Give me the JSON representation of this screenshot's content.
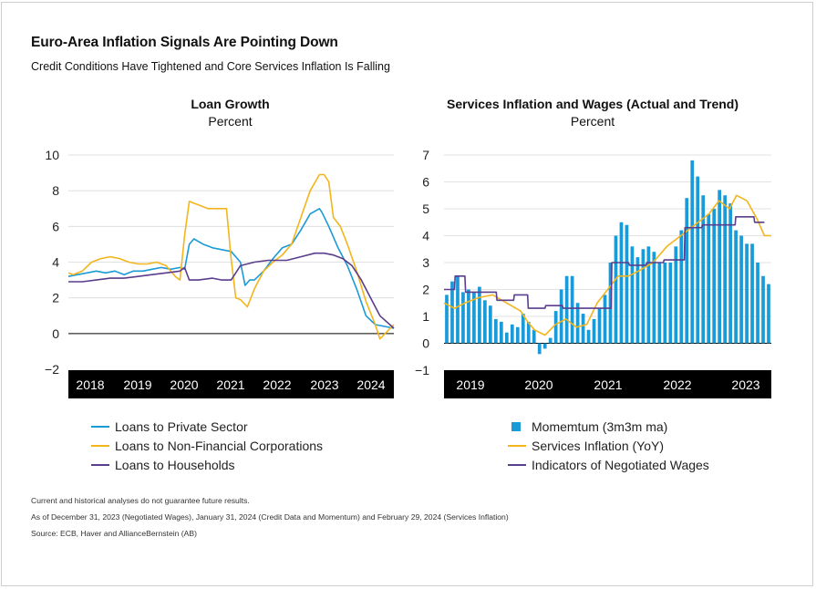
{
  "header": {
    "title": "Euro-Area Inflation Signals Are Pointing Down",
    "subtitle": "Credit Conditions Have Tightened and Core Services Inflation Is Falling"
  },
  "colors": {
    "blue": "#1a9ad6",
    "gold": "#f2b51c",
    "purple": "#5a3d8c",
    "axisband": "#000000"
  },
  "chart_data": [
    {
      "type": "line",
      "title": "Loan Growth",
      "ylabel": "Percent",
      "ylim": [
        -2,
        10
      ],
      "yticks": [
        -2,
        0,
        2,
        4,
        6,
        8,
        10
      ],
      "xticks": [
        "2018",
        "2019",
        "2020",
        "2021",
        "2022",
        "2023",
        "2024"
      ],
      "xlim": [
        2017.5,
        2024.5
      ],
      "grid": true,
      "legend": "bottom",
      "series": [
        {
          "name": "Loans to Private Sector",
          "color": "#1a9ad6",
          "x": [
            2017.5,
            2017.7,
            2017.9,
            2018.1,
            2018.3,
            2018.5,
            2018.7,
            2018.9,
            2019.1,
            2019.3,
            2019.5,
            2019.7,
            2019.9,
            2020.0,
            2020.1,
            2020.2,
            2020.4,
            2020.6,
            2020.8,
            2021.0,
            2021.2,
            2021.3,
            2021.4,
            2021.5,
            2021.7,
            2021.9,
            2022.1,
            2022.3,
            2022.5,
            2022.7,
            2022.9,
            2022.95,
            2023.1,
            2023.3,
            2023.5,
            2023.7,
            2023.9,
            2024.1,
            2024.3,
            2024.5
          ],
          "y": [
            3.2,
            3.3,
            3.4,
            3.5,
            3.4,
            3.5,
            3.3,
            3.5,
            3.5,
            3.6,
            3.7,
            3.6,
            3.7,
            3.6,
            5.0,
            5.3,
            5.0,
            4.8,
            4.7,
            4.6,
            4.0,
            2.7,
            3.0,
            3.0,
            3.5,
            4.2,
            4.8,
            5.0,
            5.8,
            6.7,
            7.0,
            6.8,
            6.0,
            4.8,
            3.8,
            2.5,
            1.0,
            0.5,
            0.4,
            0.3
          ]
        },
        {
          "name": "Loans to Non-Financial Corporations",
          "color": "#f2b51c",
          "x": [
            2017.5,
            2017.6,
            2017.8,
            2018.0,
            2018.2,
            2018.4,
            2018.6,
            2018.8,
            2019.0,
            2019.2,
            2019.4,
            2019.6,
            2019.8,
            2019.9,
            2020.0,
            2020.1,
            2020.2,
            2020.3,
            2020.5,
            2020.7,
            2020.9,
            2021.0,
            2021.1,
            2021.2,
            2021.35,
            2021.5,
            2021.7,
            2021.9,
            2022.1,
            2022.3,
            2022.5,
            2022.7,
            2022.9,
            2023.0,
            2023.1,
            2023.2,
            2023.35,
            2023.5,
            2023.7,
            2023.9,
            2024.1,
            2024.2,
            2024.35,
            2024.5
          ],
          "y": [
            3.4,
            3.3,
            3.5,
            4.0,
            4.2,
            4.3,
            4.2,
            4.0,
            3.9,
            3.9,
            4.0,
            3.8,
            3.2,
            3.0,
            5.5,
            7.4,
            7.3,
            7.2,
            7.0,
            7.0,
            7.0,
            4.2,
            2.0,
            1.9,
            1.5,
            2.5,
            3.5,
            4.0,
            4.4,
            5.0,
            6.5,
            8.0,
            8.9,
            8.9,
            8.5,
            6.5,
            6.0,
            5.0,
            3.5,
            1.8,
            0.5,
            -0.3,
            0.1,
            0.5
          ]
        },
        {
          "name": "Loans to Households",
          "color": "#5a3d8c",
          "x": [
            2017.5,
            2017.8,
            2018.1,
            2018.4,
            2018.7,
            2019.0,
            2019.3,
            2019.6,
            2019.9,
            2020.0,
            2020.1,
            2020.3,
            2020.6,
            2020.8,
            2021.0,
            2021.2,
            2021.5,
            2021.8,
            2022.0,
            2022.2,
            2022.5,
            2022.8,
            2023.0,
            2023.2,
            2023.4,
            2023.6,
            2023.8,
            2024.0,
            2024.2,
            2024.5
          ],
          "y": [
            2.9,
            2.9,
            3.0,
            3.1,
            3.1,
            3.2,
            3.3,
            3.4,
            3.5,
            3.7,
            3.0,
            3.0,
            3.1,
            3.0,
            3.0,
            3.8,
            4.0,
            4.1,
            4.1,
            4.1,
            4.3,
            4.5,
            4.5,
            4.4,
            4.2,
            3.8,
            3.0,
            2.0,
            1.0,
            0.3
          ]
        }
      ]
    },
    {
      "type": "bar+line",
      "title": "Services Inflation and Wages (Actual and Trend)",
      "ylabel": "Percent",
      "ylim": [
        -1,
        7
      ],
      "yticks": [
        -1,
        0,
        1,
        2,
        3,
        4,
        5,
        6,
        7
      ],
      "xticks": [
        "2019",
        "2020",
        "2021",
        "2022",
        "2023"
      ],
      "xlim": [
        2018.8,
        2023.5
      ],
      "grid": true,
      "legend": "bottom",
      "bars": {
        "name": "Momemtum (3m3m ma)",
        "color": "#1a9ad6",
        "x_start": 2018.8,
        "x_step": 0.0833,
        "values": [
          1.8,
          2.3,
          2.5,
          1.9,
          2.0,
          1.9,
          2.1,
          1.6,
          1.4,
          0.9,
          0.8,
          0.4,
          0.7,
          0.6,
          1.1,
          0.8,
          0.5,
          -0.4,
          -0.2,
          0.2,
          1.2,
          2.0,
          2.5,
          2.5,
          1.5,
          1.1,
          0.5,
          0.9,
          1.3,
          1.8,
          3.0,
          4.0,
          4.5,
          4.4,
          3.6,
          3.2,
          3.5,
          3.6,
          3.4,
          3.0,
          3.0,
          3.0,
          3.6,
          4.2,
          5.4,
          6.8,
          6.2,
          5.5,
          4.8,
          5.0,
          5.7,
          5.5,
          5.2,
          4.2,
          4.0,
          3.7,
          3.7,
          3.0,
          2.5,
          2.2
        ]
      },
      "series": [
        {
          "name": "Services Inflation (YoY)",
          "color": "#f2b51c",
          "x": [
            2018.8,
            2018.95,
            2019.1,
            2019.3,
            2019.5,
            2019.7,
            2019.9,
            2020.0,
            2020.1,
            2020.25,
            2020.4,
            2020.55,
            2020.7,
            2020.85,
            2021.0,
            2021.15,
            2021.3,
            2021.45,
            2021.6,
            2021.8,
            2022.0,
            2022.1,
            2022.3,
            2022.45,
            2022.6,
            2022.75,
            2022.9,
            2023.0,
            2023.15,
            2023.3,
            2023.4,
            2023.5
          ],
          "y": [
            1.5,
            1.3,
            1.5,
            1.7,
            1.8,
            1.5,
            1.2,
            0.8,
            0.5,
            0.3,
            0.7,
            0.9,
            0.6,
            0.7,
            1.5,
            2.0,
            2.5,
            2.5,
            2.7,
            3.0,
            3.6,
            3.8,
            4.2,
            4.5,
            4.8,
            5.3,
            5.0,
            5.5,
            5.3,
            4.6,
            4.0,
            4.0
          ]
        },
        {
          "name": "Indicators of Negotiated Wages",
          "color": "#5a3d8c",
          "x": [
            2018.8,
            2018.95,
            2018.96,
            2019.1,
            2019.11,
            2019.3,
            2019.31,
            2019.55,
            2019.56,
            2019.8,
            2019.81,
            2020.0,
            2020.01,
            2020.25,
            2020.26,
            2020.5,
            2020.51,
            2020.75,
            2020.76,
            2020.98,
            2020.99,
            2021.2,
            2021.21,
            2021.45,
            2021.46,
            2021.7,
            2021.71,
            2021.95,
            2021.96,
            2022.25,
            2022.26,
            2022.5,
            2022.51,
            2022.75,
            2022.76,
            2022.98,
            2022.99,
            2023.25,
            2023.26,
            2023.4
          ],
          "y": [
            2.0,
            2.0,
            2.5,
            2.5,
            1.9,
            1.9,
            1.9,
            1.9,
            1.6,
            1.6,
            1.8,
            1.8,
            1.3,
            1.3,
            1.4,
            1.4,
            1.3,
            1.3,
            1.3,
            1.3,
            1.3,
            1.3,
            3.0,
            3.0,
            2.9,
            2.9,
            3.0,
            3.0,
            3.1,
            3.1,
            4.3,
            4.3,
            4.4,
            4.4,
            4.4,
            4.4,
            4.7,
            4.7,
            4.5,
            4.5
          ]
        }
      ]
    }
  ],
  "legend_left": [
    {
      "label": "Loans to Private Sector",
      "color": "#1a9ad6",
      "shape": "line"
    },
    {
      "label": "Loans to Non-Financial Corporations",
      "color": "#f2b51c",
      "shape": "line"
    },
    {
      "label": "Loans to Households",
      "color": "#5a3d8c",
      "shape": "line"
    }
  ],
  "legend_right": [
    {
      "label": "Momemtum (3m3m ma)",
      "color": "#1a9ad6",
      "shape": "box"
    },
    {
      "label": "Services Inflation (YoY)",
      "color": "#f2b51c",
      "shape": "line"
    },
    {
      "label": "Indicators of Negotiated Wages",
      "color": "#5a3d8c",
      "shape": "line"
    }
  ],
  "footnotes": {
    "disclaimer": "Current and historical analyses do not guarantee future results.",
    "asof": "As of December 31, 2023 (Negotiated Wages), January 31, 2024 (Credit Data and Momentum) and February 29, 2024 (Services Inflation)",
    "source": "Source: ECB, Haver and AllianceBernstein (AB)"
  }
}
